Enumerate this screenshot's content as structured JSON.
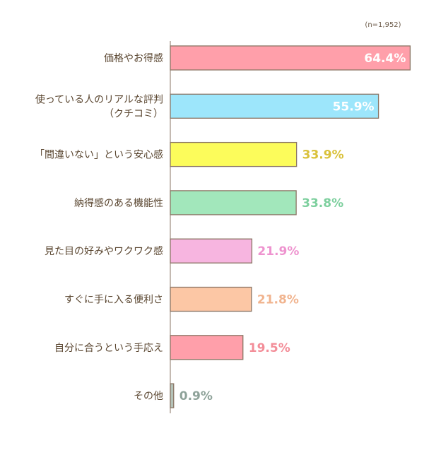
{
  "chart_data": {
    "type": "bar",
    "orientation": "horizontal",
    "note": "(n=1,952)",
    "categories": [
      [
        "価格やお得感"
      ],
      [
        "使っている人のリアルな評判",
        "（クチコミ）"
      ],
      [
        "「間違いない」という安心感"
      ],
      [
        "納得感のある機能性"
      ],
      [
        "見た目の好みやワクワク感"
      ],
      [
        "すぐに手に入る便利さ"
      ],
      [
        "自分に合うという手応え"
      ],
      [
        "その他"
      ]
    ],
    "values": [
      64.4,
      55.9,
      33.9,
      33.8,
      21.9,
      21.8,
      19.5,
      0.9
    ],
    "value_labels": [
      "64.4%",
      "55.9%",
      "33.9%",
      "33.8%",
      "21.9%",
      "21.8%",
      "19.5%",
      "0.9%"
    ],
    "xlim": [
      0,
      100
    ],
    "grid": false,
    "colors": [
      "#ff9faa",
      "#9de6fb",
      "#fcfc5b",
      "#a2e7bb",
      "#f7b5e0",
      "#fcc7a5",
      "#ff9faa",
      "#b4c2b8"
    ],
    "label_colors": [
      "#ffffff",
      "#ffffff",
      "#d9c13a",
      "#7ccf9d",
      "#ee93cf",
      "#f1b48f",
      "#f38d98",
      "#8fa39a"
    ],
    "label_inside": [
      true,
      true,
      false,
      false,
      false,
      false,
      false,
      false
    ],
    "outline_color": "#8a7564"
  }
}
